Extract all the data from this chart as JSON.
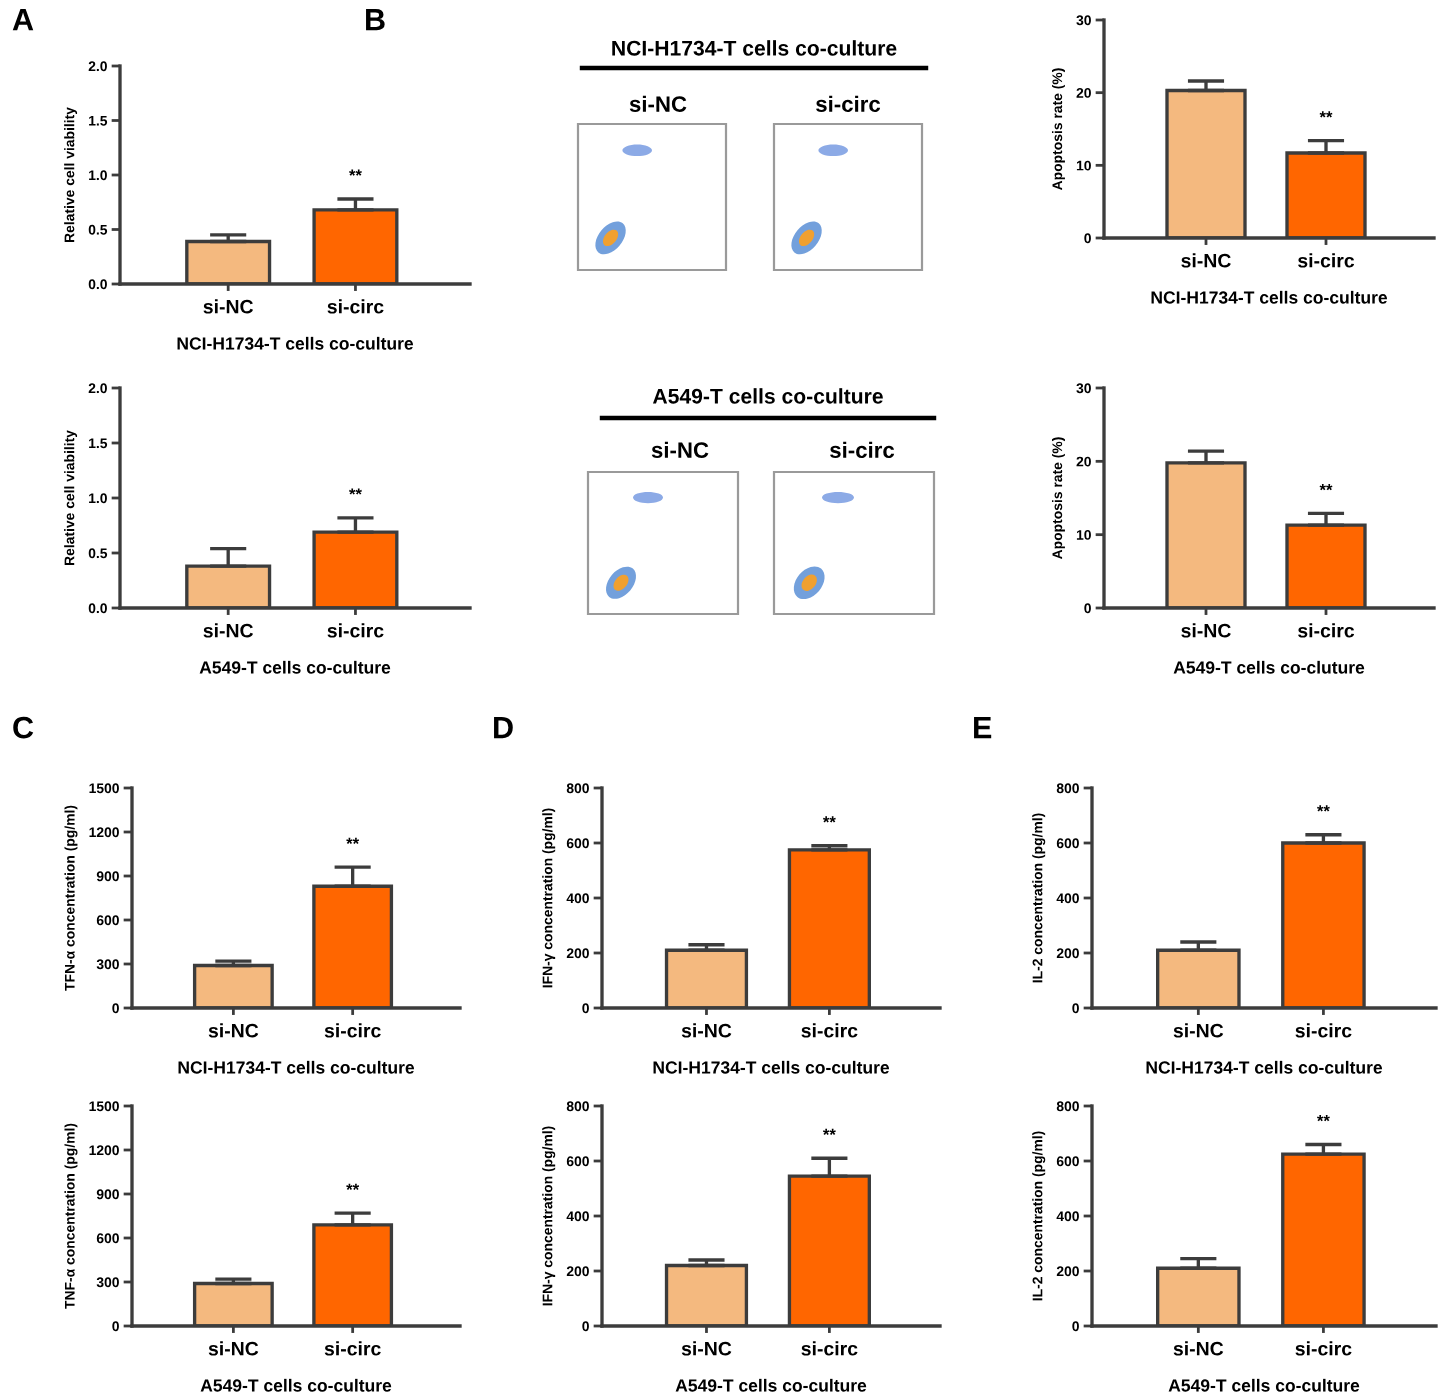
{
  "chart_data": [
    {
      "type": "bar",
      "categories": [
        "si-NC",
        "si-circ"
      ],
      "values": [
        0.39,
        0.68
      ],
      "errors": [
        [
          0.39,
          0.45
        ],
        [
          0.68,
          0.78
        ]
      ],
      "colors": [
        "#f4b97f",
        "#ff6600"
      ],
      "ylabel": "Relative cell viability",
      "xlabel": "NCI-H1734-T cells co-culture",
      "ylim": [
        0,
        2
      ],
      "yticks": [
        {
          "value": 0,
          "label": "0.0"
        },
        0.5,
        {
          "value": 1,
          "label": "1.0"
        },
        1.5,
        {
          "value": 2,
          "label": "2.0"
        }
      ],
      "annotations": [
        "A",
        {
          "text": "**",
          "x": "si-circ",
          "y": 0.78
        }
      ]
    },
    {
      "type": "bar",
      "categories": [
        "si-NC",
        "si-circ"
      ],
      "values": [
        0.38,
        0.69
      ],
      "errors": [
        [
          0.38,
          0.54
        ],
        [
          0.69,
          0.82
        ]
      ],
      "colors": [
        "#f4b97f",
        "#ff6600"
      ],
      "ylabel": "Relative cell viability",
      "xlabel": "A549-T cells co-culture",
      "ylim": [
        0,
        2
      ],
      "yticks": [
        {
          "value": 0,
          "label": "0.0"
        },
        0.5,
        {
          "value": 1,
          "label": "1.0"
        },
        1.5,
        {
          "value": 2,
          "label": "2.0"
        }
      ],
      "annotations": [
        {
          "text": "**",
          "x": "si-circ",
          "y": 0.82
        }
      ]
    },
    {
      "type": "other",
      "title": "NCI-H1734-T cells co-culture",
      "categories": [
        "si-NC",
        "si-circ"
      ],
      "annotations": [
        "B"
      ]
    },
    {
      "type": "bar",
      "categories": [
        "si-NC",
        "si-circ"
      ],
      "values": [
        20.3,
        11.7
      ],
      "errors": [
        [
          20.3,
          21.6
        ],
        [
          11.7,
          13.4
        ]
      ],
      "colors": [
        "#f4b97f",
        "#ff6600"
      ],
      "ylabel": "Apoptosis rate (%)",
      "xlabel": "NCI-H1734-T cells co-culture",
      "ylim": [
        0,
        30
      ],
      "yticks": [
        0,
        10,
        20,
        30
      ],
      "annotations": [
        {
          "text": "**",
          "x": "si-circ",
          "y": 13.4
        }
      ]
    },
    {
      "type": "other",
      "title": "A549-T cells co-culture",
      "categories": [
        "si-NC",
        "si-circ"
      ]
    },
    {
      "type": "bar",
      "categories": [
        "si-NC",
        "si-circ"
      ],
      "values": [
        19.8,
        11.3
      ],
      "errors": [
        [
          19.8,
          21.4
        ],
        [
          11.3,
          12.9
        ]
      ],
      "colors": [
        "#f4b97f",
        "#ff6600"
      ],
      "ylabel": "Apoptosis rate (%)",
      "xlabel": "A549-T cells co-cluture",
      "ylim": [
        0,
        30
      ],
      "yticks": [
        0,
        10,
        20,
        30
      ],
      "annotations": [
        {
          "text": "**",
          "x": "si-circ",
          "y": 12.9
        }
      ]
    },
    {
      "type": "bar",
      "categories": [
        "si-NC",
        "si-circ"
      ],
      "values": [
        290,
        830
      ],
      "errors": [
        [
          290,
          320
        ],
        [
          830,
          960
        ]
      ],
      "colors": [
        "#f4b97f",
        "#ff6600"
      ],
      "ylabel": "TFN-α concentration (pg/ml)",
      "xlabel": "NCI-H1734-T cells co-culture",
      "ylim": [
        0,
        1500
      ],
      "yticks": [
        0,
        300,
        600,
        900,
        1200,
        1500
      ],
      "annotations": [
        "C",
        {
          "text": "**",
          "x": "si-circ",
          "y": 960
        }
      ]
    },
    {
      "type": "bar",
      "categories": [
        "si-NC",
        "si-circ"
      ],
      "values": [
        290,
        690
      ],
      "errors": [
        [
          290,
          320
        ],
        [
          690,
          770
        ]
      ],
      "colors": [
        "#f4b97f",
        "#ff6600"
      ],
      "ylabel": "TNF-α concentration (pg/ml)",
      "xlabel": "A549-T cells co-culture",
      "ylim": [
        0,
        1500
      ],
      "yticks": [
        0,
        300,
        600,
        900,
        1200,
        1500
      ],
      "annotations": [
        {
          "text": "**",
          "x": "si-circ",
          "y": 770
        }
      ]
    },
    {
      "type": "bar",
      "categories": [
        "si-NC",
        "si-circ"
      ],
      "values": [
        210,
        575
      ],
      "errors": [
        [
          210,
          230
        ],
        [
          575,
          590
        ]
      ],
      "colors": [
        "#f4b97f",
        "#ff6600"
      ],
      "ylabel": "IFN-γ concentration (pg/ml)",
      "xlabel": "NCI-H1734-T cells co-culture",
      "ylim": [
        0,
        800
      ],
      "yticks": [
        0,
        200,
        400,
        600,
        800
      ],
      "annotations": [
        "D",
        {
          "text": "**",
          "x": "si-circ",
          "y": 590
        }
      ]
    },
    {
      "type": "bar",
      "categories": [
        "si-NC",
        "si-circ"
      ],
      "values": [
        220,
        545
      ],
      "errors": [
        [
          220,
          240
        ],
        [
          545,
          610
        ]
      ],
      "colors": [
        "#f4b97f",
        "#ff6600"
      ],
      "ylabel": "IFN-γ concentration (pg/ml)",
      "xlabel": "A549-T cells co-culture",
      "ylim": [
        0,
        800
      ],
      "yticks": [
        0,
        200,
        400,
        600,
        800
      ],
      "annotations": [
        {
          "text": "**",
          "x": "si-circ",
          "y": 610
        }
      ]
    },
    {
      "type": "bar",
      "categories": [
        "si-NC",
        "si-circ"
      ],
      "values": [
        210,
        600
      ],
      "errors": [
        [
          210,
          240
        ],
        [
          600,
          630
        ]
      ],
      "colors": [
        "#f4b97f",
        "#ff6600"
      ],
      "ylabel": "IL-2 concentration (pg/ml)",
      "xlabel": "NCI-H1734-T cells co-culture",
      "ylim": [
        0,
        800
      ],
      "yticks": [
        0,
        200,
        400,
        600,
        800
      ],
      "annotations": [
        "E",
        {
          "text": "**",
          "x": "si-circ",
          "y": 630
        }
      ]
    },
    {
      "type": "bar",
      "categories": [
        "si-NC",
        "si-circ"
      ],
      "values": [
        210,
        625
      ],
      "errors": [
        [
          210,
          245
        ],
        [
          625,
          660
        ]
      ],
      "colors": [
        "#f4b97f",
        "#ff6600"
      ],
      "ylabel": "IL-2 concentration (pg/ml)",
      "xlabel": "A549-T cells co-culture",
      "ylim": [
        0,
        800
      ],
      "yticks": [
        0,
        200,
        400,
        600,
        800
      ],
      "annotations": [
        {
          "text": "**",
          "x": "si-circ",
          "y": 660
        }
      ]
    }
  ]
}
